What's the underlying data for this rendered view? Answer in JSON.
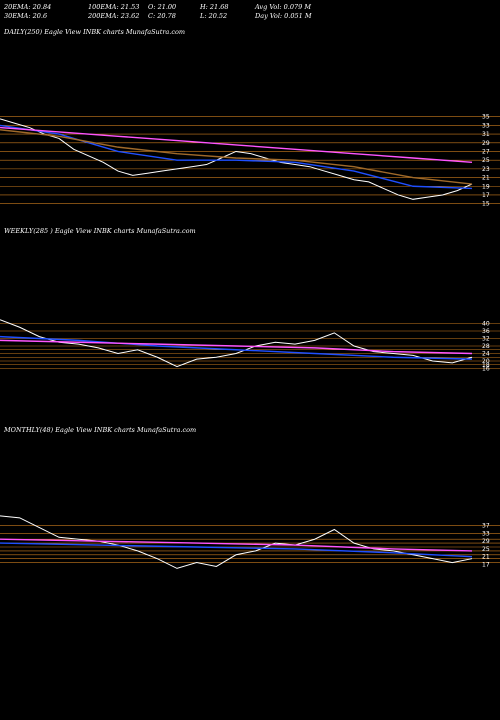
{
  "header": {
    "row1": [
      "20EMA: 20.84",
      "100EMA: 21.53",
      "O: 21.00",
      "H: 21.68",
      "Avg Vol: 0.079 M"
    ],
    "row2": [
      "30EMA: 20.6",
      "200EMA: 23.62",
      "C: 20.78",
      "L: 20.52",
      "Day Vol: 0.051 M"
    ]
  },
  "colors": {
    "price": "#ffffff",
    "ema_short": "#1f4fff",
    "ema_long": "#ff55ff",
    "ema_mid": "#a06a2a",
    "ref_line": "#c87a1e",
    "background": "#000000"
  },
  "chart_data": [
    {
      "type": "line",
      "label": "DAILY(250) Eagle   View  INBK charts MunafaSutra.com",
      "ylim": [
        14,
        37
      ],
      "ticks": [
        35,
        33,
        31,
        29,
        27,
        25,
        23,
        21,
        19,
        17,
        15
      ],
      "ref_levels": [
        35,
        33,
        31,
        29,
        27,
        25,
        23,
        21,
        19,
        17,
        15
      ],
      "series": [
        {
          "role": "price",
          "x": [
            0,
            15,
            30,
            45,
            60,
            75,
            90,
            105,
            120,
            135,
            150,
            165,
            180,
            195,
            210,
            225,
            240,
            255,
            270,
            285,
            300,
            315,
            330,
            345,
            360,
            375,
            390,
            405,
            420,
            435,
            450,
            465,
            480
          ],
          "y": [
            34.5,
            33.5,
            32.5,
            31,
            30,
            27.5,
            26,
            24.5,
            22.5,
            21.5,
            22,
            22.5,
            23,
            23.5,
            24,
            25.5,
            27,
            26.5,
            25.5,
            24.5,
            24,
            23.5,
            22.5,
            21.5,
            20.5,
            20,
            18.5,
            17,
            16,
            16.5,
            17,
            18,
            19.5
          ]
        },
        {
          "role": "ema_short",
          "x": [
            0,
            60,
            120,
            180,
            240,
            300,
            360,
            420,
            480
          ],
          "y": [
            33,
            31,
            27,
            25,
            25,
            24.5,
            22.5,
            19,
            18.5
          ]
        },
        {
          "role": "ema_mid",
          "x": [
            0,
            60,
            120,
            180,
            240,
            300,
            360,
            420,
            480
          ],
          "y": [
            32,
            30.5,
            28,
            26.5,
            25.5,
            25,
            23.5,
            21,
            19.5
          ]
        },
        {
          "role": "ema_long",
          "x": [
            0,
            60,
            120,
            180,
            240,
            300,
            360,
            420,
            480
          ],
          "y": [
            32.5,
            31.5,
            30.5,
            29.5,
            28.5,
            27.5,
            26.5,
            25.5,
            24.5
          ]
        }
      ]
    },
    {
      "type": "line",
      "label": "WEEKLY(285                 ) Eagle   View  INBK charts MunafaSutra.com",
      "ylim": [
        12,
        44
      ],
      "ticks": [
        40,
        36,
        32,
        28,
        24,
        20,
        18,
        16
      ],
      "ref_levels": [
        40,
        36,
        32,
        28,
        26,
        24,
        22,
        20,
        18,
        16
      ],
      "series": [
        {
          "role": "price",
          "x": [
            0,
            20,
            40,
            60,
            80,
            100,
            120,
            140,
            160,
            180,
            200,
            220,
            240,
            260,
            280,
            300,
            320,
            340,
            360,
            380,
            400,
            420,
            440,
            460,
            480
          ],
          "y": [
            42,
            38,
            33,
            30,
            29,
            27,
            24,
            26,
            22,
            17,
            21,
            22,
            24,
            28,
            30,
            29,
            31,
            35,
            28,
            25,
            24,
            23,
            20,
            19,
            22
          ]
        },
        {
          "role": "ema_short",
          "x": [
            0,
            80,
            160,
            240,
            320,
            400,
            480
          ],
          "y": [
            33,
            31,
            28,
            26,
            24,
            22,
            21
          ]
        },
        {
          "role": "ema_long",
          "x": [
            0,
            80,
            160,
            240,
            320,
            400,
            480
          ],
          "y": [
            31,
            30,
            29,
            28,
            27,
            25,
            24
          ]
        }
      ]
    },
    {
      "type": "line",
      "label": "MONTHLY(48) Eagle   View  INBK charts MunafaSutra.com",
      "ylim": [
        8,
        44
      ],
      "ticks": [
        37,
        33,
        29,
        25,
        21,
        17
      ],
      "ref_levels": [
        37,
        33,
        30,
        28,
        26,
        24,
        22,
        20,
        18
      ],
      "series": [
        {
          "role": "price",
          "x": [
            0,
            20,
            40,
            60,
            80,
            100,
            120,
            140,
            160,
            180,
            200,
            220,
            240,
            260,
            280,
            300,
            320,
            340,
            360,
            380,
            400,
            420,
            440,
            460,
            480
          ],
          "y": [
            42,
            41,
            36,
            31,
            30,
            29,
            27,
            24,
            20,
            15,
            18,
            16,
            22,
            24,
            28,
            27,
            30,
            35,
            28,
            25,
            24,
            22,
            20,
            18,
            20
          ]
        },
        {
          "role": "ema_short",
          "x": [
            0,
            100,
            200,
            300,
            400,
            480
          ],
          "y": [
            28,
            27,
            26,
            25,
            23,
            21
          ]
        },
        {
          "role": "ema_long",
          "x": [
            0,
            100,
            200,
            300,
            400,
            480
          ],
          "y": [
            30,
            29,
            28,
            27,
            25,
            24
          ]
        }
      ]
    }
  ]
}
